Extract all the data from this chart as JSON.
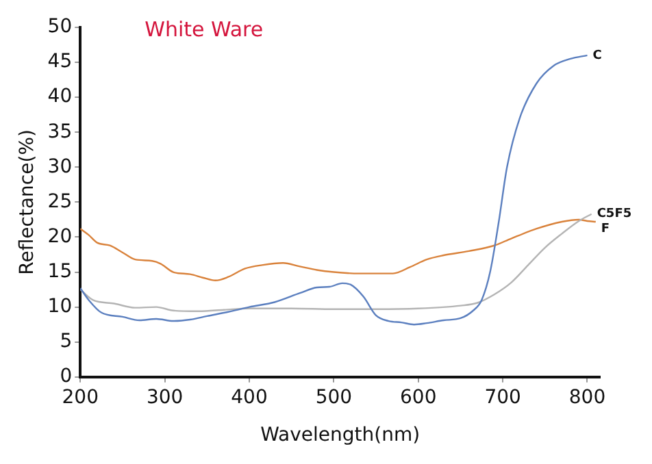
{
  "chart_data": {
    "type": "line",
    "title": "White Ware",
    "xlabel": "Wavelength(nm)",
    "ylabel": "Reflectance(%)",
    "xlim": [
      200,
      815
    ],
    "xticks": [
      200,
      300,
      400,
      500,
      600,
      700,
      800
    ],
    "ylim": [
      0,
      50
    ],
    "yticks": [
      0,
      5,
      10,
      15,
      20,
      25,
      30,
      35,
      40,
      45,
      50
    ],
    "grid": false,
    "legend": false,
    "marker": "none",
    "line_style": "solid",
    "series": [
      {
        "name": "C",
        "color": "#5b7fbf",
        "x": [
          200,
          210,
          225,
          250,
          270,
          290,
          310,
          330,
          350,
          375,
          400,
          430,
          460,
          480,
          495,
          510,
          520,
          535,
          550,
          565,
          580,
          595,
          610,
          630,
          650,
          665,
          675,
          685,
          695,
          705,
          720,
          740,
          760,
          780,
          800
        ],
        "values": [
          12.7,
          11,
          9.2,
          8.6,
          8.1,
          8.3,
          8.0,
          8.2,
          8.7,
          9.3,
          10,
          10.7,
          12,
          12.8,
          12.9,
          13.4,
          13.2,
          11.5,
          8.8,
          8.0,
          7.8,
          7.5,
          7.7,
          8.1,
          8.4,
          9.5,
          11,
          15,
          22,
          30,
          37,
          42,
          44.5,
          45.5,
          46
        ]
      },
      {
        "name": "C5F5",
        "color": "#b4b4b4",
        "x": [
          200,
          215,
          240,
          265,
          290,
          310,
          340,
          370,
          400,
          450,
          500,
          550,
          600,
          650,
          670,
          690,
          710,
          730,
          750,
          770,
          790,
          805
        ],
        "values": [
          12.5,
          11,
          10.5,
          9.9,
          10,
          9.5,
          9.4,
          9.6,
          9.8,
          9.8,
          9.7,
          9.7,
          9.8,
          10.2,
          10.6,
          11.8,
          13.5,
          16,
          18.5,
          20.5,
          22.3,
          23.3
        ]
      },
      {
        "name": "F",
        "color": "#d9823b",
        "x": [
          200,
          210,
          220,
          235,
          250,
          265,
          285,
          295,
          310,
          330,
          345,
          360,
          375,
          395,
          415,
          440,
          460,
          480,
          500,
          530,
          570,
          590,
          610,
          630,
          660,
          690,
          710,
          740,
          770,
          790,
          800,
          810
        ],
        "values": [
          21.2,
          20.3,
          19.2,
          18.8,
          17.8,
          16.8,
          16.6,
          16.2,
          15,
          14.7,
          14.2,
          13.8,
          14.3,
          15.5,
          16,
          16.3,
          15.8,
          15.3,
          15,
          14.8,
          14.8,
          15.7,
          16.8,
          17.4,
          18,
          18.8,
          19.8,
          21.2,
          22.2,
          22.5,
          22.3,
          22.2
        ]
      }
    ]
  }
}
